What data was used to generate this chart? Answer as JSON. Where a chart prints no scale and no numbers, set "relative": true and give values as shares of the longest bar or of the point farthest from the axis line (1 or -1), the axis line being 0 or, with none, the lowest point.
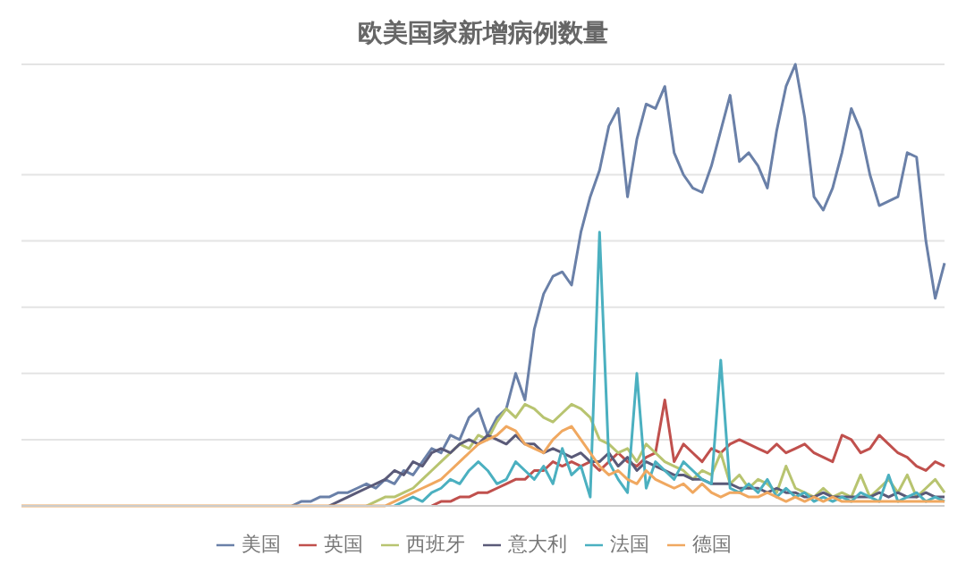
{
  "chart_data": {
    "type": "line",
    "title": "欧美国家新增病例数量",
    "relative": true,
    "grid": "y",
    "legend": "bottom",
    "marker": "none",
    "categories": [
      null,
      null,
      null,
      null,
      null,
      null,
      null,
      null,
      null,
      null,
      null,
      null,
      null,
      null,
      null,
      null,
      null,
      null,
      null,
      null,
      null,
      null,
      null,
      null,
      null,
      null,
      null,
      null,
      null,
      null,
      null,
      null,
      null,
      null,
      null,
      null,
      null,
      null,
      null,
      null,
      null,
      null,
      null,
      null,
      null,
      null,
      null,
      null,
      null,
      null,
      null,
      null,
      null,
      null,
      null,
      null,
      null,
      null,
      null,
      null,
      null,
      null,
      null,
      null,
      null,
      null,
      null,
      null,
      null,
      null,
      null,
      null,
      null,
      null,
      null,
      null,
      null,
      null,
      null,
      null,
      null,
      null,
      null,
      null,
      null,
      null,
      null,
      null,
      null,
      null,
      null,
      null,
      null,
      null,
      null,
      null,
      null,
      null,
      null,
      null
    ],
    "series": [
      {
        "name": "美国",
        "color": "#6a80a8",
        "values": [
          null,
          null,
          null,
          null,
          null,
          null,
          null,
          null,
          null,
          null,
          null,
          null,
          null,
          null,
          null,
          null,
          null,
          null,
          null,
          null,
          null,
          null,
          null,
          null,
          null,
          null,
          null,
          null,
          null,
          0,
          0.01,
          0.01,
          0.02,
          0.02,
          0.03,
          0.03,
          0.04,
          0.05,
          0.04,
          0.06,
          0.05,
          0.08,
          0.07,
          0.1,
          0.13,
          0.12,
          0.16,
          0.15,
          0.2,
          0.22,
          0.16,
          0.2,
          0.22,
          0.3,
          0.24,
          0.4,
          0.48,
          0.52,
          0.53,
          0.5,
          0.62,
          0.7,
          0.76,
          0.86,
          0.9,
          0.7,
          0.83,
          0.91,
          0.9,
          0.95,
          0.8,
          0.75,
          0.72,
          0.71,
          0.77,
          0.85,
          0.93,
          0.78,
          0.8,
          0.77,
          0.72,
          0.85,
          0.95,
          1,
          0.88,
          0.7,
          0.67,
          0.72,
          0.8,
          0.9,
          0.85,
          0.75,
          0.68,
          0.69,
          0.7,
          0.8,
          0.79,
          0.6,
          0.47,
          0.55
        ]
      },
      {
        "name": "英国",
        "color": "#c0504d",
        "values": [
          null,
          null,
          null,
          null,
          null,
          null,
          null,
          null,
          null,
          null,
          null,
          null,
          null,
          null,
          null,
          null,
          null,
          null,
          null,
          null,
          null,
          null,
          null,
          null,
          null,
          null,
          null,
          null,
          null,
          null,
          null,
          null,
          null,
          null,
          null,
          null,
          null,
          null,
          null,
          null,
          null,
          null,
          null,
          null,
          0,
          0.01,
          0.01,
          0.02,
          0.02,
          0.03,
          0.03,
          0.04,
          0.05,
          0.06,
          0.06,
          0.08,
          0.08,
          0.1,
          0.09,
          0.1,
          0.09,
          0.1,
          0.08,
          0.1,
          0.12,
          0.1,
          0.09,
          0.11,
          0.12,
          0.24,
          0.1,
          0.14,
          0.12,
          0.1,
          0.13,
          0.12,
          0.14,
          0.15,
          0.14,
          0.13,
          0.12,
          0.14,
          0.12,
          0.13,
          0.14,
          0.12,
          0.11,
          0.1,
          0.16,
          0.15,
          0.12,
          0.13,
          0.16,
          0.14,
          0.12,
          0.11,
          0.09,
          0.08,
          0.1,
          0.09
        ]
      },
      {
        "name": "西班牙",
        "color": "#b8c470",
        "values": [
          null,
          null,
          null,
          null,
          null,
          null,
          null,
          null,
          null,
          null,
          null,
          null,
          null,
          null,
          null,
          null,
          null,
          null,
          null,
          null,
          null,
          null,
          null,
          null,
          null,
          null,
          null,
          null,
          null,
          null,
          null,
          null,
          null,
          null,
          null,
          null,
          null,
          0,
          0.01,
          0.02,
          0.02,
          0.03,
          0.04,
          0.06,
          0.08,
          0.1,
          0.12,
          0.14,
          0.13,
          0.16,
          0.15,
          0.19,
          0.22,
          0.2,
          0.23,
          0.22,
          0.2,
          0.19,
          0.21,
          0.23,
          0.22,
          0.2,
          0.15,
          0.14,
          0.12,
          0.13,
          0.1,
          0.14,
          0.12,
          0.1,
          0.09,
          0.08,
          0.06,
          0.08,
          0.07,
          0.12,
          0.05,
          0.07,
          0.04,
          0.06,
          0.05,
          0.03,
          0.09,
          0.04,
          0.03,
          0.02,
          0.04,
          0.02,
          0.03,
          0.02,
          0.07,
          0.02,
          0.04,
          0.06,
          0.03,
          0.07,
          0.02,
          0.04,
          0.06,
          0.03
        ]
      },
      {
        "name": "意大利",
        "color": "#5a5a78",
        "values": [
          null,
          null,
          null,
          null,
          null,
          null,
          null,
          null,
          null,
          null,
          null,
          null,
          null,
          null,
          null,
          null,
          null,
          null,
          null,
          null,
          null,
          null,
          null,
          null,
          null,
          null,
          null,
          null,
          null,
          null,
          null,
          null,
          null,
          0,
          0.01,
          0.02,
          0.03,
          0.04,
          0.05,
          0.06,
          0.08,
          0.07,
          0.1,
          0.09,
          0.12,
          0.13,
          0.12,
          0.14,
          0.15,
          0.14,
          0.16,
          0.15,
          0.14,
          0.16,
          0.14,
          0.14,
          0.12,
          0.13,
          0.12,
          0.11,
          0.12,
          0.1,
          0.1,
          0.12,
          0.09,
          0.11,
          0.08,
          0.1,
          0.09,
          0.08,
          0.07,
          0.07,
          0.06,
          0.06,
          0.05,
          0.05,
          0.05,
          0.04,
          0.04,
          0.04,
          0.03,
          0.04,
          0.03,
          0.03,
          0.02,
          0.02,
          0.03,
          0.02,
          0.02,
          0.02,
          0.02,
          0.02,
          0.03,
          0.02,
          0.03,
          0.02,
          0.02,
          0.03,
          0.02,
          0.02
        ]
      },
      {
        "name": "法国",
        "color": "#4bb0c0",
        "values": [
          null,
          null,
          null,
          null,
          null,
          null,
          null,
          null,
          null,
          null,
          null,
          null,
          null,
          null,
          null,
          null,
          null,
          null,
          null,
          null,
          null,
          null,
          null,
          null,
          null,
          null,
          null,
          null,
          null,
          null,
          null,
          null,
          null,
          null,
          null,
          null,
          null,
          null,
          null,
          null,
          0,
          0.01,
          0.02,
          0.01,
          0.03,
          0.04,
          0.06,
          0.05,
          0.08,
          0.1,
          0.08,
          0.05,
          0.06,
          0.1,
          0.08,
          0.06,
          0.09,
          0.05,
          0.13,
          0.07,
          0.09,
          0.02,
          0.62,
          0.1,
          0.06,
          0.03,
          0.3,
          0.04,
          0.1,
          0.08,
          0.06,
          0.1,
          0.08,
          0.06,
          0.05,
          0.33,
          0.04,
          0.03,
          0.05,
          0.03,
          0.06,
          0.02,
          0.04,
          0.02,
          0.03,
          0.01,
          0.02,
          0.01,
          0.02,
          0.01,
          0.03,
          0.02,
          0.01,
          0.07,
          0.01,
          0.02,
          0.03,
          0.01,
          0.02,
          0.01
        ]
      },
      {
        "name": "德国",
        "color": "#f0a860",
        "values": [
          0,
          0,
          0,
          0,
          0,
          0,
          0,
          0,
          0,
          0,
          0,
          0,
          0,
          0,
          0,
          0,
          0,
          0,
          0,
          0,
          0,
          0,
          0,
          0,
          0,
          0,
          0,
          0,
          0,
          0,
          0,
          0,
          0,
          0,
          0,
          0,
          0,
          0,
          0,
          0,
          0.01,
          0.02,
          0.03,
          0.04,
          0.05,
          0.06,
          0.08,
          0.1,
          0.12,
          0.14,
          0.15,
          0.16,
          0.18,
          0.17,
          0.14,
          0.13,
          0.12,
          0.15,
          0.17,
          0.18,
          0.15,
          0.12,
          0.09,
          0.07,
          0.08,
          0.06,
          0.05,
          0.08,
          0.06,
          0.05,
          0.04,
          0.05,
          0.03,
          0.05,
          0.03,
          0.02,
          0.03,
          0.03,
          0.02,
          0.02,
          0.03,
          0.02,
          0.01,
          0.02,
          0.01,
          0.02,
          0.01,
          0.02,
          0.01,
          0.01,
          0.01,
          0.01,
          0.01,
          0.01,
          0.01,
          0.01,
          0.01,
          0.01,
          0.01,
          0.01
        ]
      }
    ]
  }
}
